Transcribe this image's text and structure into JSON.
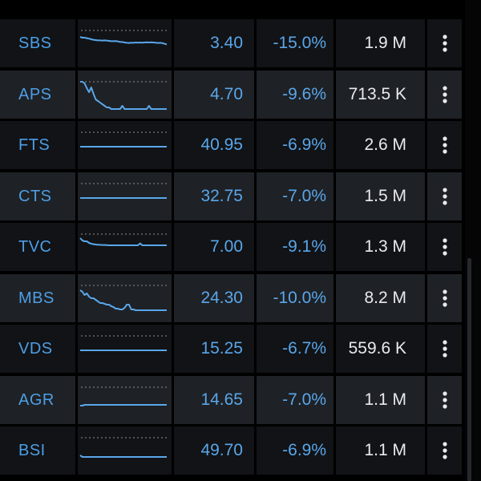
{
  "rows": [
    {
      "symbol": "SBS",
      "price": "3.40",
      "change": "-15.0%",
      "volume": "1.9 M",
      "spark": [
        8,
        9,
        9,
        9.6,
        10.2,
        11,
        11.6,
        12,
        12.4,
        12.4,
        12.6,
        12.4,
        12.6,
        13,
        13.4,
        13.4,
        13.2,
        13.6,
        14.4,
        14.4,
        15,
        15.4,
        15.6,
        15.2,
        15.4,
        15,
        15.2,
        15,
        15.2,
        15,
        14.8,
        15,
        14.8,
        15,
        15.2,
        15.6,
        15.4,
        15.8,
        16.6,
        17.4
      ]
    },
    {
      "symbol": "APS",
      "price": "4.70",
      "change": "-9.6%",
      "volume": "713.5 K",
      "spark": [
        0,
        0,
        2,
        8,
        13,
        7,
        15,
        22,
        24,
        26,
        28,
        30,
        32,
        32,
        34,
        34,
        34,
        34,
        34,
        30,
        34,
        34,
        34,
        34,
        34,
        34,
        34,
        34,
        34,
        34,
        34,
        30,
        34,
        34,
        34,
        34,
        34,
        34,
        34,
        34
      ]
    },
    {
      "symbol": "FTS",
      "price": "40.95",
      "change": "-6.9%",
      "volume": "2.6 M",
      "spark": [
        18,
        18,
        18,
        18,
        18,
        18,
        18,
        18,
        18,
        18,
        18,
        18,
        18,
        18,
        18,
        18,
        18,
        18,
        18,
        18,
        18,
        18,
        18,
        18,
        18,
        18,
        18,
        18,
        18,
        18,
        18,
        18,
        18,
        18,
        18,
        18,
        18,
        18,
        18,
        18
      ]
    },
    {
      "symbol": "CTS",
      "price": "32.75",
      "change": "-7.0%",
      "volume": "1.5 M",
      "spark": [
        18,
        18,
        18,
        18,
        18,
        18,
        18,
        18,
        18,
        18,
        18,
        18,
        18,
        18,
        18,
        18,
        18,
        18,
        18,
        18,
        18,
        18,
        18,
        18,
        18,
        18,
        18,
        18,
        18,
        18,
        18,
        18,
        18,
        18,
        18,
        18,
        18,
        18,
        18,
        18
      ]
    },
    {
      "symbol": "TVC",
      "price": "7.00",
      "change": "-9.1%",
      "volume": "1.3 M",
      "spark": [
        5,
        8,
        9,
        9,
        11,
        12,
        12.6,
        13,
        13.4,
        13.4,
        13.6,
        13.6,
        13.8,
        14,
        14,
        14,
        14,
        14,
        14,
        14,
        14,
        14,
        14,
        14,
        14,
        14,
        14,
        11.6,
        14,
        14,
        14,
        14,
        14,
        14,
        14,
        14,
        14,
        14,
        14,
        14
      ]
    },
    {
      "symbol": "MBS",
      "price": "24.30",
      "change": "-10.0%",
      "volume": "8.2 M",
      "spark": [
        6,
        8,
        12,
        10,
        14,
        16,
        16,
        18,
        20,
        22,
        22,
        23,
        24,
        24,
        26,
        27,
        29,
        29,
        30,
        30,
        28,
        24,
        24,
        30,
        30,
        31,
        31,
        31,
        31,
        31,
        31,
        31,
        31,
        31,
        31,
        31,
        31,
        31,
        31,
        31
      ]
    },
    {
      "symbol": "VDS",
      "price": "15.25",
      "change": "-6.7%",
      "volume": "559.6 K",
      "spark": [
        18,
        18,
        18,
        18,
        18,
        18,
        18,
        18,
        18,
        18,
        18,
        18,
        18,
        18,
        18,
        18,
        18,
        18,
        18,
        18,
        18,
        18,
        18,
        18,
        18,
        18,
        18,
        18,
        18,
        18,
        18,
        18,
        18,
        18,
        18,
        18,
        18,
        18,
        18,
        18
      ]
    },
    {
      "symbol": "AGR",
      "price": "14.65",
      "change": "-7.0%",
      "volume": "1.1 M",
      "spark": [
        23,
        23,
        22,
        22,
        22,
        22,
        22,
        22,
        22,
        22,
        22,
        22,
        22,
        22,
        22,
        22,
        22,
        22,
        22,
        22,
        22,
        22,
        22,
        22,
        22,
        22,
        22,
        22,
        22,
        22,
        22,
        22,
        22,
        22,
        22,
        22,
        22,
        22,
        22,
        22
      ]
    },
    {
      "symbol": "BSI",
      "price": "49.70",
      "change": "-6.9%",
      "volume": "1.1 M",
      "spark": [
        22,
        24,
        24,
        24,
        24,
        24,
        24,
        24,
        24,
        24,
        24,
        24,
        24,
        24,
        24,
        24,
        24,
        24,
        24,
        24,
        24,
        24,
        24,
        24,
        24,
        24,
        24,
        24,
        24,
        24,
        24,
        24,
        24,
        24,
        24,
        24,
        24,
        24,
        24,
        24
      ]
    }
  ],
  "menu_icon": "more-vert-icon",
  "colors": {
    "accent": "#5aa6ea",
    "symbol": "#4d9ee6",
    "volume_text": "#e8eaed",
    "row_bg": "#111316",
    "row_bg_alt": "#1e2125",
    "sparkline": "#5aa6ea"
  }
}
